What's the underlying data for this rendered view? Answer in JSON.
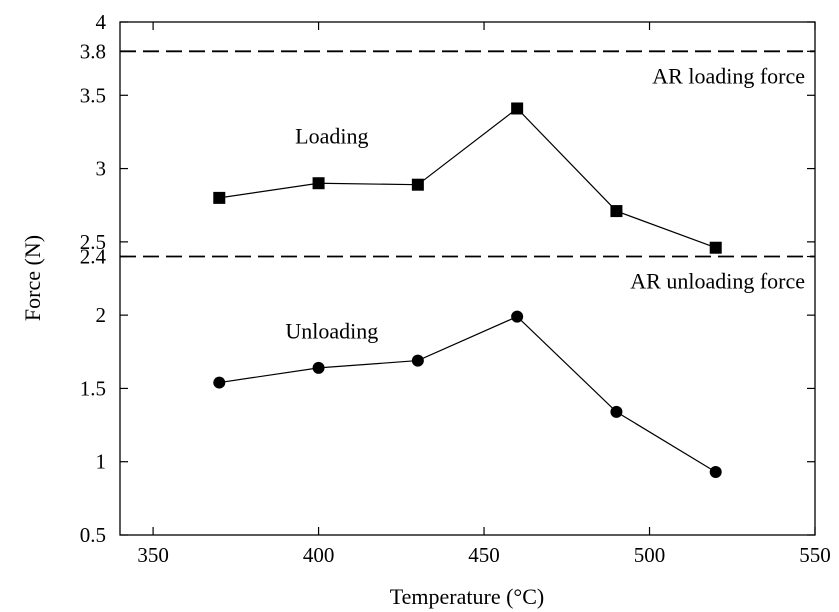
{
  "chart_data": {
    "type": "line",
    "title": "",
    "xlabel": "Temperature (°C)",
    "ylabel": "Force (N)",
    "xlim": [
      340,
      550
    ],
    "ylim": [
      0.5,
      4.0
    ],
    "xticks": [
      350,
      400,
      450,
      500,
      550
    ],
    "xtick_labels": [
      "350",
      "400",
      "450",
      "500",
      "550"
    ],
    "yticks": [
      0.5,
      1.0,
      1.5,
      2.0,
      2.4,
      2.5,
      3.0,
      3.5,
      3.8,
      4.0
    ],
    "ytick_labels": [
      "0.5",
      "1",
      "1.5",
      "2",
      "2.4",
      "2.5",
      "3",
      "3.5",
      "3.8",
      "4"
    ],
    "grid": false,
    "legend": "none",
    "series": [
      {
        "marker": "square",
        "color": "#000000",
        "x": [
          370,
          400,
          430,
          460,
          490,
          520
        ],
        "y": [
          2.8,
          2.9,
          2.89,
          3.41,
          2.71,
          2.46
        ]
      },
      {
        "marker": "circle",
        "color": "#000000",
        "x": [
          370,
          400,
          430,
          460,
          490,
          520
        ],
        "y": [
          1.54,
          1.64,
          1.69,
          1.99,
          1.34,
          0.93
        ]
      }
    ],
    "reference_lines": [
      {
        "y": 3.8,
        "style": "dashed",
        "label": "AR loading force"
      },
      {
        "y": 2.4,
        "style": "dashed",
        "label": "AR unloading force"
      }
    ],
    "annotations": [
      {
        "text": "Loading",
        "x": 404,
        "y": 3.17
      },
      {
        "text": "Unloading",
        "x": 404,
        "y": 1.84
      }
    ]
  }
}
